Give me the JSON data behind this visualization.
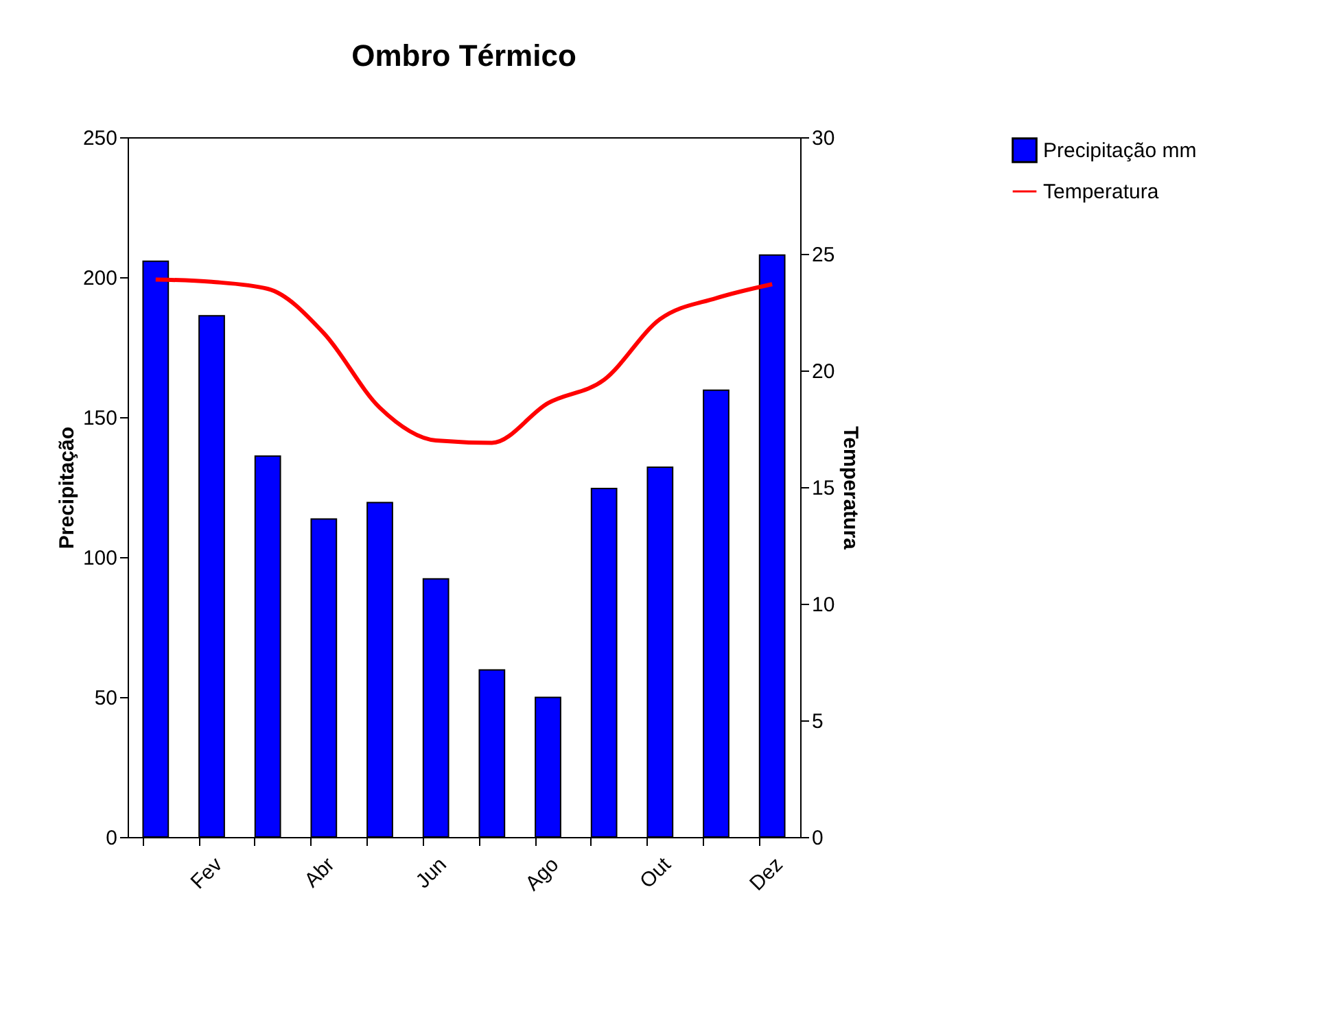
{
  "chart_data": {
    "type": "bar",
    "title": "Ombro Térmico",
    "ylabel": "Precipitação",
    "y2label": "Temperatura",
    "categories": [
      null,
      "Fev",
      null,
      "Abr",
      null,
      "Jun",
      null,
      "Ago",
      null,
      "Out",
      null,
      "Dez"
    ],
    "series": [
      {
        "name": "Precipitação mm",
        "color": "#0000ff",
        "values": [
          205.7,
          186.2,
          136.1,
          113.6,
          119.5,
          92.2,
          59.7,
          49.9,
          124.5,
          132.1,
          159.6,
          207.9
        ]
      },
      {
        "name": "Temperatura",
        "type": "line",
        "axis": "y2",
        "color": "#ff0000",
        "values": [
          23.9,
          23.8,
          23.5,
          21.6,
          18.4,
          17.0,
          16.9,
          18.6,
          19.6,
          22.2,
          23.1,
          23.7
        ]
      }
    ],
    "ylim": [
      0,
      250
    ],
    "yticks": [
      0,
      50,
      100,
      150,
      200,
      250
    ],
    "y2lim": [
      0,
      30
    ],
    "y2ticks": [
      0,
      5,
      10,
      15,
      20,
      25,
      30
    ],
    "grid": false,
    "legend": "right",
    "marker": "none",
    "line_style": "solid"
  }
}
